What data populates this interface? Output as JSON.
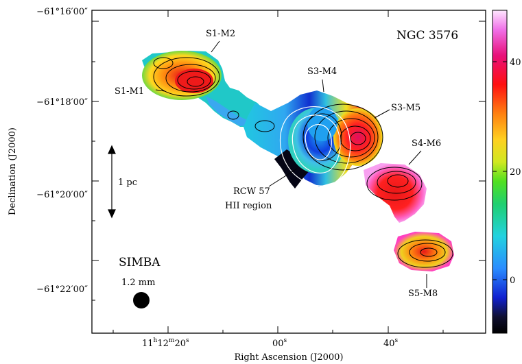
{
  "figure": {
    "object_name": "NGC 3576",
    "instrument": "SIMBA",
    "wavelength": "1.2 mm",
    "scale_label": "1 pc",
    "hii_label_line1": "RCW 57",
    "hii_label_line2": "HII region"
  },
  "axes": {
    "xlabel": "Right Ascension (J2000)",
    "ylabel": "Declination (J2000)",
    "x_tick_labels": [
      {
        "h": "11",
        "m": "12",
        "s": "20",
        "text": "11h12m20s"
      },
      {
        "s": "00",
        "text": "00s"
      },
      {
        "s": "40",
        "text": "40s"
      }
    ],
    "y_tick_labels": [
      "−61°16′00″",
      "−61°18′00″",
      "−61°20′00″",
      "−61°22′00″"
    ]
  },
  "colorbar": {
    "tick_labels": [
      "40",
      "20",
      "0"
    ]
  },
  "clumps": [
    {
      "id": "S1-M1"
    },
    {
      "id": "S1-M2"
    },
    {
      "id": "S3-M4"
    },
    {
      "id": "S3-M5"
    },
    {
      "id": "S4-M6"
    },
    {
      "id": "S5-M8"
    }
  ]
}
